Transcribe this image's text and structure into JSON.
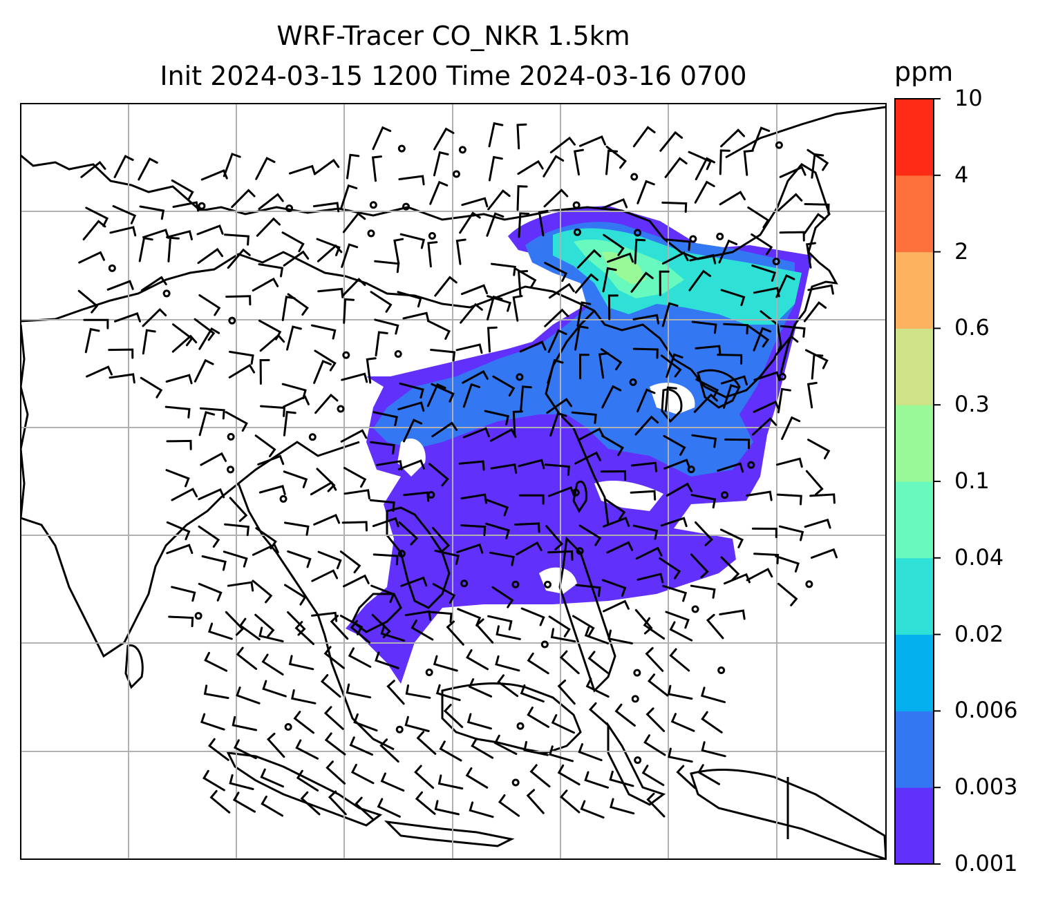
{
  "title": {
    "line1": "WRF-Tracer CO_NKR 1.5km",
    "line2": "Init 2024-03-15 1200 Time 2024-03-16 0700"
  },
  "colorbar": {
    "unit": "ppm",
    "levels": [
      "0.001",
      "0.003",
      "0.006",
      "0.02",
      "0.04",
      "0.1",
      "0.3",
      "0.6",
      "2",
      "4",
      "10"
    ],
    "colors": [
      "#6130fa",
      "#3377f2",
      "#05b0ef",
      "#2fe0d6",
      "#68f9be",
      "#99f996",
      "#cfe288",
      "#fcb25e",
      "#ff713c",
      "#fe2b17"
    ]
  },
  "map": {
    "gridlines": true,
    "plume_colors": {
      "lowest": "#6130fa",
      "low": "#3377f2",
      "mid": "#2fe0d6",
      "high": "#68f9be",
      "peak": "#99f996"
    },
    "coastline_color": "#000000",
    "wind_barb_color": "#000000",
    "gridline_color": "#b0b0b0"
  }
}
